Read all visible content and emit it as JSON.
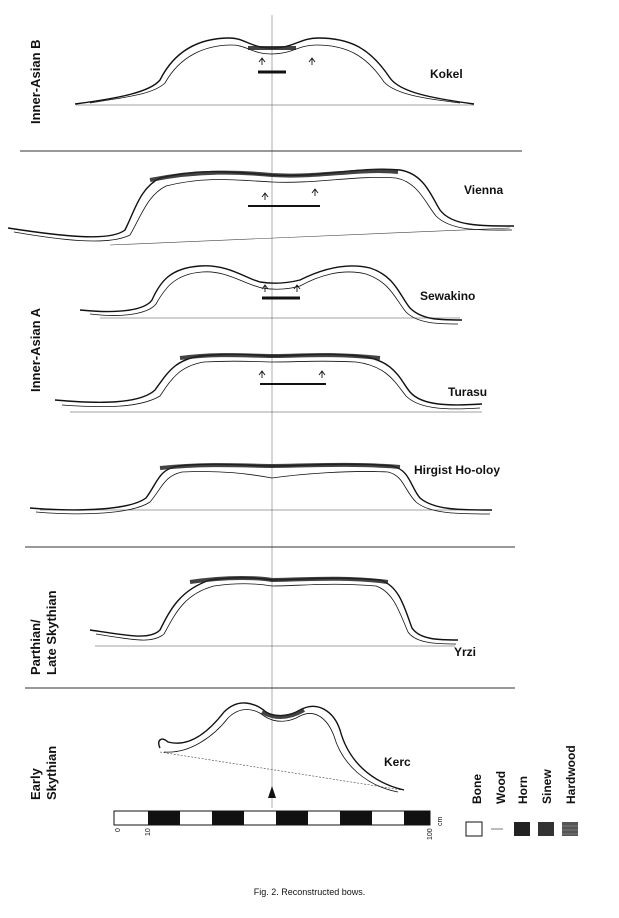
{
  "groups": [
    "Inner-Asian B",
    "Inner-Asian A",
    "Parthian/ Late Skythian",
    "Early Skythian"
  ],
  "bows": [
    "Kokel",
    "Vienna",
    "Sewakino",
    "Turasu",
    "Hirgist Ho-oloy",
    "Yrzi",
    "Kerc"
  ],
  "scale": {
    "ticks": [
      "0",
      "10",
      "100"
    ],
    "unit": "cm"
  },
  "legend": [
    "Bone",
    "Wood",
    "Horn",
    "Sinew",
    "Hardwood"
  ],
  "caption": "Fig. 2. Reconstructed bows."
}
